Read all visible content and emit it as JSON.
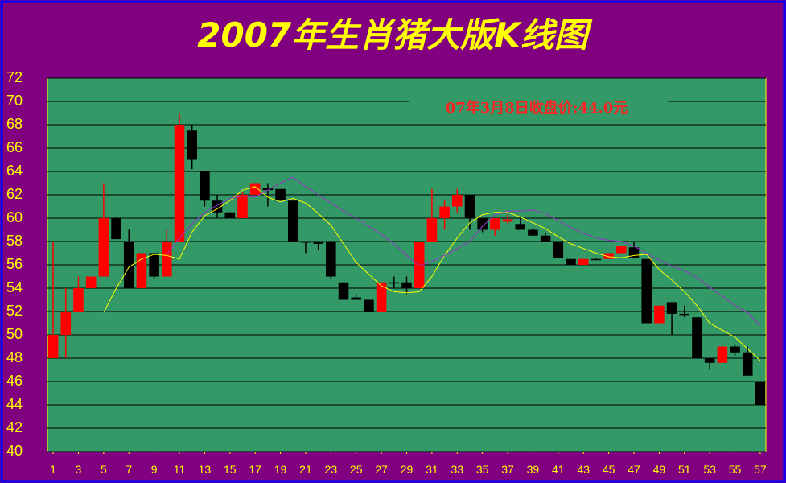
{
  "chart_data": {
    "type": "candlestick",
    "title": "2007年生肖猪大版K线图",
    "annotation": "07年3月8日收盘价:44.0元",
    "x": [
      1,
      2,
      3,
      4,
      5,
      6,
      7,
      8,
      9,
      10,
      11,
      12,
      13,
      14,
      15,
      16,
      17,
      18,
      19,
      20,
      21,
      22,
      23,
      24,
      25,
      26,
      27,
      28,
      29,
      30,
      31,
      32,
      33,
      34,
      35,
      36,
      37,
      38,
      39,
      40,
      41,
      42,
      43,
      44,
      45,
      46,
      47,
      48,
      49,
      50,
      51,
      52,
      53,
      54,
      55,
      56,
      57
    ],
    "open": [
      48,
      50,
      52,
      54,
      55,
      60,
      58,
      54,
      57,
      55,
      58,
      67.5,
      64,
      61.5,
      60.5,
      60,
      62,
      62.6,
      62.5,
      61.5,
      58,
      58,
      58,
      54.5,
      53.2,
      53,
      52,
      54.5,
      54.5,
      54,
      58,
      60,
      61,
      62,
      60,
      59,
      59.7,
      59.5,
      59,
      58.5,
      58,
      56.5,
      56,
      56.5,
      56.5,
      57,
      57.5,
      56.5,
      51,
      52.8,
      51.8,
      51.5,
      48,
      47.6,
      49,
      48.5,
      46
    ],
    "high": [
      58,
      54,
      55,
      55,
      63,
      60.1,
      59,
      57,
      57,
      59,
      69,
      68,
      64,
      62,
      60.5,
      62.2,
      63,
      63,
      62.5,
      61.5,
      58,
      58,
      58,
      54.5,
      53.5,
      53,
      54.5,
      55,
      55,
      58,
      62.5,
      61.5,
      62.5,
      62,
      60,
      60,
      60.3,
      60,
      59.2,
      58.7,
      58,
      56.5,
      56.5,
      56.6,
      57,
      57.6,
      58,
      56.5,
      52.5,
      52.8,
      52.5,
      51.5,
      48,
      49,
      49.2,
      49,
      46
    ],
    "low": [
      48,
      48,
      52,
      54,
      55,
      58.2,
      54,
      54,
      54.8,
      55,
      58,
      64.2,
      61,
      60,
      60,
      60,
      62,
      61,
      61.5,
      58,
      57,
      57.3,
      54.8,
      53,
      53,
      52,
      52,
      54,
      53.5,
      54,
      58,
      59,
      60.5,
      59,
      58.8,
      58.5,
      59.5,
      59,
      58.5,
      58,
      56.6,
      56,
      56,
      56.4,
      56.5,
      57,
      56.6,
      51,
      51,
      50,
      51.5,
      48,
      47,
      47.6,
      48.2,
      46.5,
      44
    ],
    "close": [
      50,
      52,
      54,
      55,
      60,
      58.2,
      54,
      57,
      55,
      58,
      68,
      65,
      61.5,
      60.5,
      60,
      62,
      63,
      62.4,
      61.5,
      58,
      57.9,
      57.8,
      55,
      53,
      53,
      52,
      54.5,
      54.4,
      54,
      58,
      60,
      61,
      62,
      60,
      59,
      60,
      59.9,
      59,
      58.5,
      58,
      56.6,
      56,
      56.5,
      56.5,
      57,
      57.6,
      56.6,
      51,
      52.5,
      51.8,
      51.7,
      48,
      47.6,
      49,
      48.5,
      46.5,
      44
    ],
    "up_color": "#ff0000",
    "down_color": "#000000",
    "moving_averages": [
      {
        "color": "#ffff00",
        "values": [
          null,
          null,
          null,
          null,
          51.9,
          54,
          55.8,
          56.5,
          56.9,
          56.8,
          56.5,
          58.8,
          60.2,
          60.8,
          61.5,
          62.4,
          62.7,
          61.8,
          61.4,
          61.7,
          61.3,
          60.4,
          59.4,
          57.8,
          56.2,
          55.2,
          54.2,
          53.7,
          53.6,
          53.7,
          55,
          56.8,
          58.3,
          59.6,
          60.3,
          60.5,
          60.5,
          60.1,
          59.6,
          59.1,
          58.4,
          57.8,
          57.4,
          57,
          56.7,
          56.6,
          56.8,
          56.9,
          55.6,
          54.7,
          53.7,
          52.5,
          51,
          50.4,
          49.8,
          48.8,
          47.8
        ]
      },
      {
        "color": "#9933cc",
        "values": [
          null,
          null,
          null,
          null,
          null,
          null,
          null,
          null,
          null,
          56.9,
          58.3,
          59.5,
          60.5,
          61.1,
          61.7,
          61.9,
          61.8,
          62.4,
          63,
          63.5,
          62.7,
          62,
          61.3,
          60.6,
          60,
          59.3,
          58.6,
          57.8,
          56.8,
          55.9,
          56.3,
          56.8,
          57.4,
          58,
          59.3,
          60.3,
          60.6,
          60.6,
          60.7,
          60.4,
          59.8,
          59.2,
          58.7,
          58.3,
          58.1,
          58,
          57.6,
          57,
          56.4,
          55.9,
          55.5,
          54.9,
          54.1,
          53.3,
          52.5,
          51.9,
          50.8
        ]
      }
    ],
    "xlim": [
      0.55,
      57.45
    ],
    "xticks": [
      1,
      3,
      5,
      7,
      9,
      11,
      13,
      15,
      17,
      19,
      21,
      23,
      25,
      27,
      29,
      31,
      33,
      35,
      37,
      39,
      41,
      43,
      45,
      47,
      49,
      51,
      53,
      55,
      57
    ],
    "ylim": [
      40,
      72
    ],
    "yticks": [
      40,
      42,
      44,
      46,
      48,
      50,
      52,
      54,
      56,
      58,
      60,
      62,
      64,
      66,
      68,
      70,
      72
    ],
    "grid": true
  }
}
